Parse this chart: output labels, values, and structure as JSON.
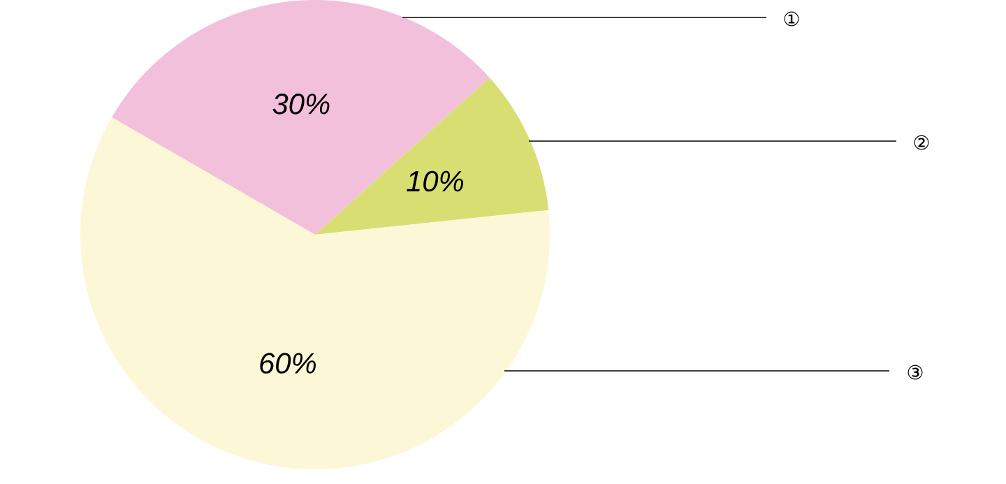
{
  "chart_data": {
    "type": "pie",
    "categories": [
      "①",
      "②",
      "③"
    ],
    "values": [
      30,
      10,
      60
    ],
    "colors": [
      "#f3c0db",
      "#d9de72",
      "#fcf7d6"
    ],
    "value_labels": [
      "30%",
      "10%",
      "60%"
    ]
  }
}
